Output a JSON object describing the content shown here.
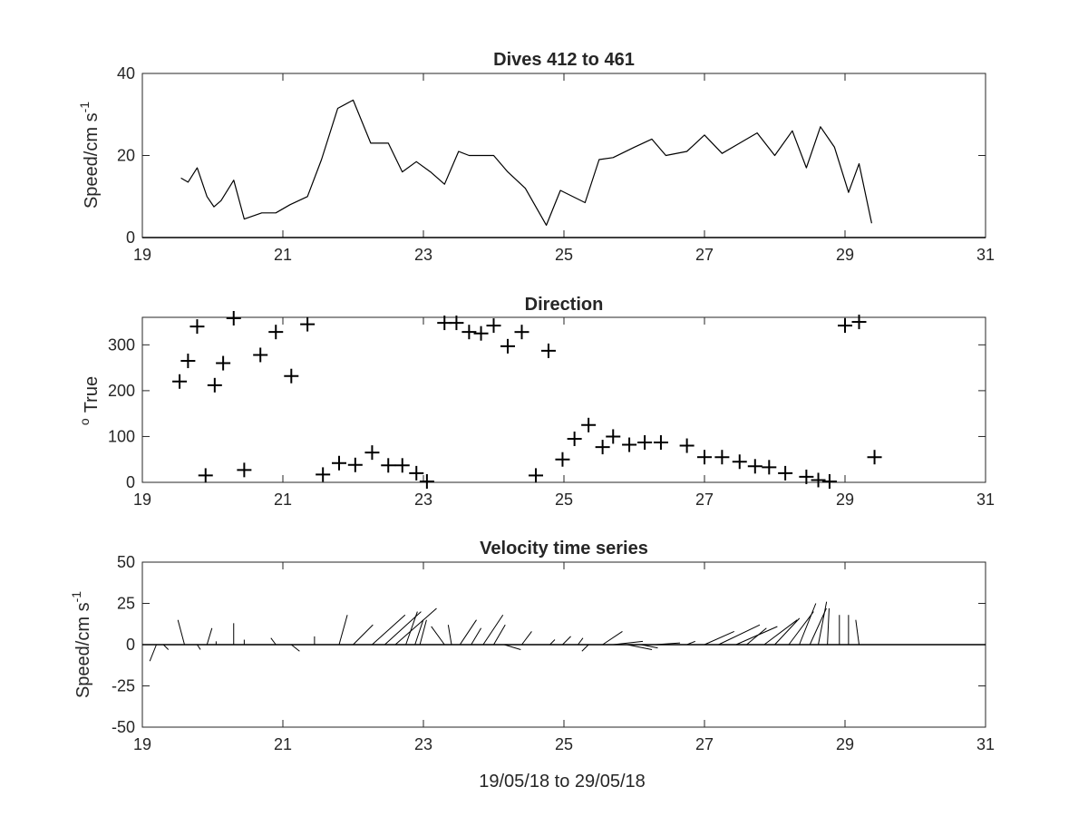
{
  "figure": {
    "xlabel": "19/05/18 to 29/05/18",
    "xticks": [
      "19",
      "21",
      "23",
      "25",
      "27",
      "29",
      "31"
    ]
  },
  "chart_data": [
    {
      "type": "line",
      "title": "Dives 412 to 461",
      "ylabel": "Speed/cm s",
      "ylabel_exponent": "-1",
      "xlim": [
        19,
        31
      ],
      "ylim": [
        0,
        40
      ],
      "yticks": [
        "0",
        "20",
        "40"
      ],
      "color": "#000000",
      "x": [
        19.55,
        19.65,
        19.78,
        19.92,
        20.02,
        20.12,
        20.3,
        20.45,
        20.7,
        20.9,
        21.1,
        21.35,
        21.55,
        21.78,
        22.0,
        22.25,
        22.5,
        22.7,
        22.9,
        23.1,
        23.3,
        23.5,
        23.65,
        23.8,
        24.0,
        24.2,
        24.45,
        24.75,
        24.95,
        25.3,
        25.5,
        25.7,
        26.0,
        26.25,
        26.45,
        26.75,
        27.0,
        27.25,
        27.5,
        27.75,
        28.0,
        28.25,
        28.45,
        28.65,
        28.85,
        29.05,
        29.2,
        29.38
      ],
      "y": [
        14.5,
        13.5,
        17,
        10,
        7.5,
        9,
        14,
        4.5,
        6,
        6,
        8,
        10,
        19,
        31.5,
        33.5,
        23,
        23,
        16,
        18.5,
        16,
        13,
        21,
        20,
        20,
        20,
        16,
        12,
        3,
        11.5,
        8.5,
        19,
        19.5,
        22,
        24,
        20,
        21,
        25,
        20.5,
        23,
        25.5,
        20,
        26,
        17,
        27,
        22,
        11,
        18,
        3.5
      ]
    },
    {
      "type": "scatter",
      "title": "Direction",
      "ylabel": "True",
      "ylabel_prefix": "o",
      "marker": "+",
      "xlim": [
        19,
        31
      ],
      "ylim": [
        0,
        360
      ],
      "yticks": [
        "0",
        "100",
        "200",
        "300"
      ],
      "color": "#000000",
      "x": [
        19.53,
        19.65,
        19.78,
        19.9,
        20.03,
        20.15,
        20.3,
        20.45,
        20.68,
        20.9,
        21.12,
        21.35,
        21.57,
        21.8,
        22.03,
        22.27,
        22.5,
        22.7,
        22.9,
        23.05,
        23.3,
        23.47,
        23.65,
        23.82,
        24.0,
        24.2,
        24.4,
        24.6,
        24.78,
        24.98,
        25.15,
        25.35,
        25.55,
        25.7,
        25.93,
        26.15,
        26.38,
        26.75,
        27.0,
        27.25,
        27.5,
        27.72,
        27.92,
        28.15,
        28.45,
        28.62,
        28.78,
        29.0,
        29.2,
        29.42
      ],
      "y": [
        220,
        265,
        340,
        15,
        212,
        260,
        358,
        27,
        278,
        328,
        232,
        345,
        17,
        42,
        38,
        65,
        37,
        37,
        20,
        2,
        348,
        348,
        328,
        325,
        342,
        297,
        328,
        15,
        287,
        50,
        95,
        125,
        77,
        100,
        82,
        87,
        87,
        80,
        55,
        55,
        45,
        35,
        33,
        20,
        12,
        5,
        2,
        342,
        350,
        55
      ]
    },
    {
      "type": "line",
      "title": "Velocity time series",
      "ylabel": "Speed/cm s",
      "ylabel_exponent": "-1",
      "style": "stick",
      "xlim": [
        19,
        31
      ],
      "ylim": [
        -50,
        50
      ],
      "yticks": [
        "-50",
        "-25",
        "0",
        "25",
        "50"
      ],
      "color": "#000000",
      "x": [
        19.2,
        19.3,
        19.45,
        19.6,
        19.78,
        19.92,
        20.05,
        20.3,
        20.45,
        20.68,
        20.9,
        21.12,
        21.3,
        21.45,
        21.6,
        21.8,
        22.0,
        22.27,
        22.45,
        22.6,
        22.75,
        22.88,
        22.95,
        23.05,
        23.3,
        23.4,
        23.52,
        23.68,
        23.85,
        24.0,
        24.15,
        24.4,
        24.6,
        24.8,
        24.98,
        25.2,
        25.35,
        25.55,
        25.7,
        25.9,
        26.1,
        26.3,
        26.55,
        26.75,
        27.0,
        27.2,
        27.45,
        27.6,
        27.85,
        28.0,
        28.2,
        28.35,
        28.5,
        28.62,
        28.75,
        28.92,
        29.05,
        29.2,
        29.45
      ],
      "u": [
        -4,
        3,
        -3,
        -4,
        2,
        3,
        0,
        0,
        0,
        0,
        -3,
        5,
        0,
        0,
        0,
        5,
        12,
        20,
        22,
        25,
        7,
        5,
        4,
        0,
        -8,
        -2,
        10,
        6,
        12,
        7,
        10,
        6,
        0,
        3,
        5,
        3,
        -4,
        12,
        18,
        15,
        10,
        15,
        10,
        5,
        18,
        25,
        25,
        12,
        20,
        15,
        15,
        10,
        10,
        5,
        1,
        0,
        0,
        -2,
        2
      ],
      "v": [
        -10,
        -3,
        0,
        15,
        -3,
        10,
        2,
        13,
        3,
        0,
        4,
        -4,
        0,
        5,
        0,
        18,
        12,
        18,
        20,
        22,
        20,
        15,
        15,
        0,
        11,
        12,
        15,
        10,
        18,
        12,
        -3,
        8,
        0,
        3,
        5,
        4,
        -4,
        8,
        2,
        -3,
        -2,
        1,
        0,
        2,
        8,
        12,
        11,
        10,
        15,
        16,
        20,
        25,
        22,
        26,
        22,
        18,
        18,
        15,
        0
      ]
    }
  ]
}
